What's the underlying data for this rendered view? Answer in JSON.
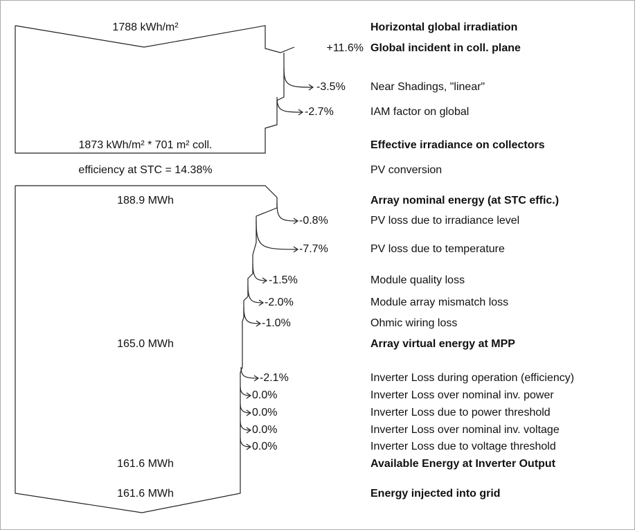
{
  "steps": [
    {
      "amount": "1788 kWh/m²",
      "label": "Horizontal global irradiation",
      "bold": true
    },
    {
      "change": "+11.6%",
      "label": "Global incident in coll. plane",
      "bold": true
    },
    {
      "change": "-3.5%",
      "label": "Near Shadings, \"linear\""
    },
    {
      "change": "-2.7%",
      "label": "IAM factor on global"
    },
    {
      "amount": "1873 kWh/m² * 701 m² coll.",
      "label": "Effective irradiance on collectors",
      "bold": true
    },
    {
      "amount": "efficiency at STC = 14.38%",
      "label": "PV conversion"
    },
    {
      "amount": "188.9 MWh",
      "label": "Array nominal energy (at STC effic.)",
      "bold": true
    },
    {
      "change": "-0.8%",
      "label": "PV loss due to irradiance level"
    },
    {
      "change": "-7.7%",
      "label": "PV loss due to temperature"
    },
    {
      "change": "-1.5%",
      "label": "Module quality loss"
    },
    {
      "change": "-2.0%",
      "label": "Module array mismatch loss"
    },
    {
      "change": "-1.0%",
      "label": "Ohmic wiring loss"
    },
    {
      "amount": "165.0 MWh",
      "label": "Array virtual energy at MPP",
      "bold": true
    },
    {
      "change": "-2.1%",
      "label": "Inverter Loss during operation (efficiency)"
    },
    {
      "change": "0.0%",
      "label": "Inverter Loss over nominal inv. power"
    },
    {
      "change": "0.0%",
      "label": "Inverter Loss due to power threshold"
    },
    {
      "change": "0.0%",
      "label": "Inverter Loss over nominal inv. voltage"
    },
    {
      "change": "0.0%",
      "label": "Inverter Loss due to voltage threshold"
    },
    {
      "amount": "161.6 MWh",
      "label": "Available Energy at Inverter Output",
      "bold": true
    },
    {
      "amount": "161.6 MWh",
      "label": "Energy injected into grid",
      "bold": true
    }
  ]
}
